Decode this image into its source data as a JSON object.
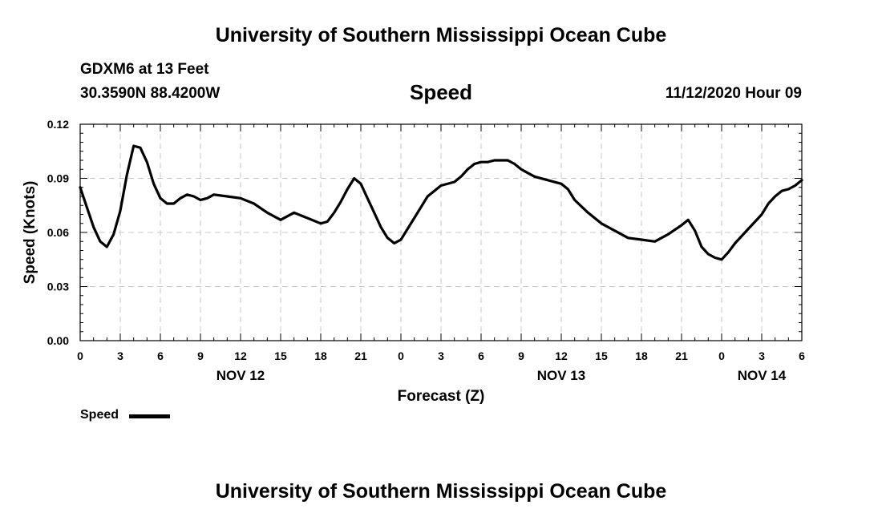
{
  "header": {
    "top_title": "University of Southern Mississippi Ocean Cube",
    "station": "GDXM6 at 13 Feet",
    "coords": "30.3590N 88.4200W",
    "plot_title": "Speed",
    "issue_time": "11/12/2020 Hour 09",
    "bottom_title": "University of Southern Mississippi Ocean Cube"
  },
  "legend": {
    "label": "Speed",
    "color": "#000000"
  },
  "chart_data": {
    "type": "line",
    "title": "Speed",
    "xlabel": "Forecast (Z)",
    "ylabel": "Speed (Knots)",
    "ylim": [
      0,
      0.12
    ],
    "yticks": [
      "0.00",
      "0.03",
      "0.06",
      "0.09",
      "0.12"
    ],
    "xlim": [
      0,
      54
    ],
    "xticks": [
      "0",
      "3",
      "6",
      "9",
      "12",
      "15",
      "18",
      "21",
      "0",
      "3",
      "6",
      "9",
      "12",
      "15",
      "18",
      "21",
      "0",
      "3",
      "6"
    ],
    "date_labels": [
      {
        "label": "NOV 12",
        "hour": 12
      },
      {
        "label": "NOV 13",
        "hour": 36
      },
      {
        "label": "NOV 14",
        "hour": 51
      }
    ],
    "grid": true,
    "series": [
      {
        "name": "Speed",
        "color": "#000000",
        "x": [
          0,
          0.5,
          1,
          1.5,
          2,
          2.5,
          3,
          3.5,
          4,
          4.5,
          5,
          5.5,
          6,
          6.5,
          7,
          7.5,
          8,
          8.5,
          9,
          9.5,
          10,
          11,
          12,
          13,
          14,
          15,
          16,
          17,
          18,
          18.5,
          19,
          19.5,
          20,
          20.5,
          21,
          21.5,
          22,
          22.5,
          23,
          23.5,
          24,
          25,
          26,
          27,
          28,
          28.5,
          29,
          29.5,
          30,
          30.5,
          31,
          31.5,
          32,
          32.5,
          33,
          33.5,
          34,
          35,
          36,
          36.5,
          37,
          38,
          39,
          40,
          41,
          42,
          43,
          44,
          45,
          45.5,
          46,
          46.5,
          47,
          47.5,
          48,
          48.5,
          49,
          49.5,
          50,
          50.5,
          51,
          51.5,
          52,
          52.5,
          53,
          53.5,
          54
        ],
        "values": [
          0.085,
          0.074,
          0.063,
          0.055,
          0.052,
          0.059,
          0.072,
          0.092,
          0.108,
          0.107,
          0.099,
          0.087,
          0.079,
          0.076,
          0.076,
          0.079,
          0.081,
          0.08,
          0.078,
          0.079,
          0.081,
          0.08,
          0.079,
          0.076,
          0.071,
          0.067,
          0.071,
          0.068,
          0.065,
          0.066,
          0.071,
          0.077,
          0.084,
          0.09,
          0.087,
          0.079,
          0.071,
          0.063,
          0.057,
          0.054,
          0.056,
          0.068,
          0.08,
          0.086,
          0.088,
          0.091,
          0.095,
          0.098,
          0.099,
          0.099,
          0.1,
          0.1,
          0.1,
          0.098,
          0.095,
          0.093,
          0.091,
          0.089,
          0.087,
          0.084,
          0.078,
          0.071,
          0.065,
          0.061,
          0.057,
          0.056,
          0.055,
          0.059,
          0.064,
          0.067,
          0.061,
          0.052,
          0.048,
          0.046,
          0.045,
          0.049,
          0.054,
          0.058,
          0.062,
          0.066,
          0.07,
          0.076,
          0.08,
          0.083,
          0.084,
          0.086,
          0.089
        ]
      }
    ]
  }
}
